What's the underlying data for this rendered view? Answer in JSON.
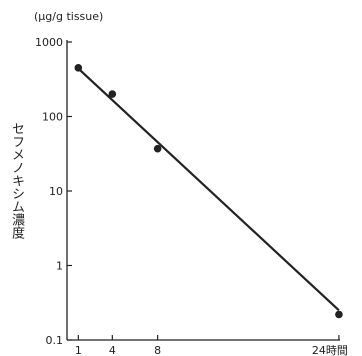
{
  "chart_data": {
    "type": "scatter",
    "title": "",
    "ylabel": "セフメノキシム濃度",
    "y_unit": "(μg/g tissue)",
    "x_unit": "時間",
    "y_scale": "log",
    "ylim": [
      0.1,
      1000
    ],
    "xlim": [
      0,
      24
    ],
    "y_ticks": [
      "0.1",
      "1",
      "10",
      "100",
      "1000"
    ],
    "x_ticks": [
      "1",
      "4",
      "8",
      "24時間"
    ],
    "grid": false,
    "series": [
      {
        "points": [
          {
            "x": 1,
            "y": 450
          },
          {
            "x": 4,
            "y": 200
          },
          {
            "x": 8,
            "y": 37
          },
          {
            "x": 24,
            "y": 0.22
          }
        ],
        "fit_line": {
          "x_start": 1,
          "y_start": 440,
          "x_end": 24,
          "y_end": 0.25
        }
      }
    ]
  }
}
